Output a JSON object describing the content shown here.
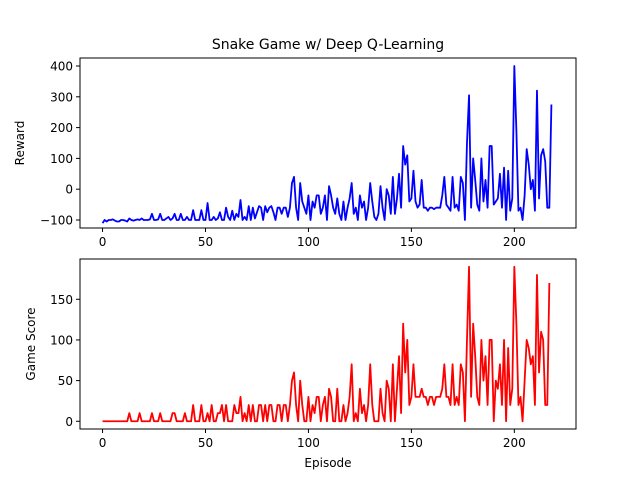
{
  "figure": {
    "title": "Snake Game w/ Deep Q-Learning"
  },
  "chart_data": [
    {
      "type": "line",
      "title": "Snake Game w/ Deep Q-Learning",
      "xlabel": "",
      "ylabel": "Reward",
      "xlim": [
        -10.95,
        229.95
      ],
      "ylim": [
        -126,
        426
      ],
      "xticks": [
        0,
        50,
        100,
        150,
        200
      ],
      "yticks": [
        -100,
        0,
        100,
        200,
        300,
        400
      ],
      "grid": false,
      "color": "#0000ff",
      "x_start": 0,
      "values": [
        -110,
        -100,
        -105,
        -100,
        -100,
        -98,
        -102,
        -105,
        -105,
        -100,
        -100,
        -102,
        -105,
        -95,
        -100,
        -102,
        -100,
        -98,
        -100,
        -95,
        -100,
        -100,
        -100,
        -98,
        -80,
        -100,
        -100,
        -98,
        -80,
        -100,
        -100,
        -95,
        -90,
        -100,
        -95,
        -80,
        -100,
        -100,
        -80,
        -100,
        -100,
        -90,
        -100,
        -100,
        -68,
        -100,
        -100,
        -100,
        -68,
        -100,
        -100,
        -45,
        -100,
        -100,
        -90,
        -100,
        -95,
        -75,
        -100,
        -100,
        -60,
        -90,
        -100,
        -70,
        -100,
        -80,
        -90,
        -35,
        -100,
        -90,
        -100,
        -55,
        -100,
        -60,
        -95,
        -75,
        -55,
        -60,
        -100,
        -55,
        -75,
        -60,
        -55,
        -75,
        -100,
        -60,
        -60,
        -80,
        -60,
        -60,
        -90,
        -60,
        20,
        40,
        -60,
        -100,
        20,
        -40,
        -60,
        -80,
        -20,
        -100,
        -40,
        -60,
        -20,
        -20,
        -80,
        -60,
        -20,
        -100,
        10,
        -20,
        -60,
        -80,
        -30,
        -80,
        -100,
        -40,
        -100,
        -60,
        -30,
        20,
        -80,
        -60,
        -100,
        -20,
        -60,
        -40,
        -100,
        -60,
        20,
        -40,
        -90,
        -100,
        -80,
        10,
        -60,
        -100,
        0,
        -20,
        -80,
        40,
        -80,
        -30,
        50,
        -60,
        140,
        80,
        110,
        -40,
        -30,
        60,
        -40,
        -60,
        -50,
        30,
        -60,
        -60,
        -70,
        -60,
        -60,
        -65,
        -60,
        -60,
        -60,
        -20,
        40,
        -50,
        -60,
        -70,
        40,
        -60,
        -50,
        -70,
        40,
        20,
        -100,
        150,
        305,
        -60,
        100,
        30,
        -50,
        -70,
        100,
        -40,
        30,
        -60,
        140,
        140,
        -50,
        -40,
        -30,
        50,
        -60,
        70,
        -100,
        60,
        -70,
        -30,
        400,
        190,
        -70,
        -60,
        -100,
        -20,
        130,
        80,
        0,
        30,
        -70,
        320,
        -30,
        110,
        130,
        90,
        -60,
        -60,
        275
      ]
    },
    {
      "type": "line",
      "title": "",
      "xlabel": "Episode",
      "ylabel": "Game Score",
      "xlim": [
        -10.95,
        229.95
      ],
      "ylim": [
        -9.5,
        199.5
      ],
      "xticks": [
        0,
        50,
        100,
        150,
        200
      ],
      "yticks": [
        0,
        50,
        100,
        150
      ],
      "grid": false,
      "color": "#ff0000",
      "x_start": 0,
      "values": [
        0,
        0,
        0,
        0,
        0,
        0,
        0,
        0,
        0,
        0,
        0,
        0,
        0,
        10,
        0,
        0,
        0,
        0,
        10,
        0,
        0,
        0,
        0,
        0,
        10,
        0,
        0,
        0,
        10,
        0,
        0,
        0,
        0,
        0,
        10,
        10,
        0,
        0,
        0,
        0,
        10,
        0,
        0,
        0,
        20,
        0,
        0,
        0,
        20,
        0,
        0,
        10,
        0,
        20,
        0,
        0,
        10,
        10,
        20,
        0,
        20,
        0,
        0,
        0,
        20,
        10,
        10,
        30,
        0,
        10,
        0,
        20,
        0,
        20,
        0,
        0,
        20,
        20,
        0,
        20,
        0,
        20,
        20,
        0,
        0,
        20,
        20,
        0,
        20,
        20,
        0,
        20,
        50,
        60,
        20,
        0,
        50,
        20,
        0,
        0,
        30,
        0,
        20,
        10,
        30,
        30,
        0,
        20,
        30,
        0,
        40,
        30,
        0,
        0,
        40,
        0,
        0,
        20,
        0,
        10,
        30,
        70,
        0,
        10,
        0,
        40,
        10,
        20,
        0,
        20,
        70,
        20,
        0,
        0,
        0,
        40,
        10,
        0,
        50,
        40,
        0,
        70,
        0,
        40,
        80,
        10,
        120,
        60,
        100,
        20,
        30,
        70,
        30,
        30,
        30,
        40,
        30,
        30,
        20,
        30,
        30,
        20,
        30,
        30,
        30,
        40,
        70,
        30,
        30,
        20,
        70,
        20,
        30,
        20,
        70,
        60,
        0,
        100,
        190,
        30,
        120,
        80,
        30,
        20,
        100,
        50,
        80,
        20,
        100,
        100,
        0,
        50,
        40,
        70,
        20,
        100,
        0,
        90,
        20,
        40,
        190,
        120,
        20,
        30,
        0,
        50,
        100,
        90,
        70,
        80,
        20,
        180,
        60,
        110,
        100,
        20,
        20,
        170
      ]
    }
  ]
}
